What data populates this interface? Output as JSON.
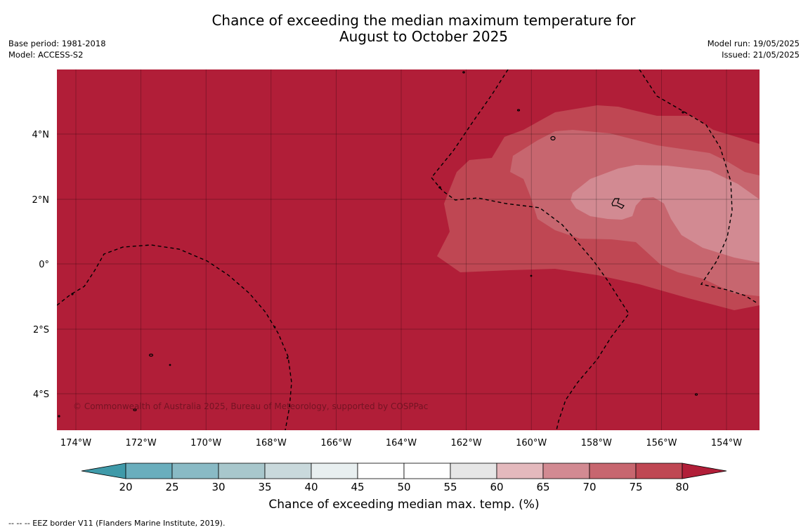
{
  "title_line1": "Chance of exceeding the median maximum temperature for",
  "title_line2": "August to October 2025",
  "base_period": "Base period: 1981-2018",
  "model": "Model: ACCESS-S2",
  "model_run": "Model run: 19/05/2025",
  "issued": "Issued: 21/05/2025",
  "copyright": "© Commonwealth of Australia 2025, Bureau of Meteorology, supported by COSPPac",
  "lon_labels": [
    "174°W",
    "172°W",
    "170°W",
    "168°W",
    "166°W",
    "164°W",
    "162°W",
    "160°W",
    "158°W",
    "156°W",
    "154°W"
  ],
  "lat_labels": [
    "4°N",
    "2°N",
    "0°",
    "2°S",
    "4°S"
  ],
  "colorbar": {
    "label": "Chance of exceeding median max. temp. (%)",
    "ticks": [
      "20",
      "25",
      "30",
      "35",
      "40",
      "45",
      "50",
      "55",
      "60",
      "65",
      "70",
      "75",
      "80"
    ],
    "colors": {
      "below_20": "#3f9aa9",
      "20_25": "#6aaebd",
      "25_30": "#89bac5",
      "30_35": "#a8c7cc",
      "35_40": "#c9d9dc",
      "40_45": "#e8eff0",
      "45_50": "#ffffff",
      "50_55": "#ffffff",
      "55_60": "#e6e6e6",
      "60_65": "#e4b9bd",
      "65_70": "#d28a92",
      "70_75": "#c7666f",
      "75_80": "#bf4753",
      "above_80": "#b11e38"
    }
  },
  "legend_footer": "--  --  -- EEZ border V11 (Flanders Marine Institute, 2019)."
}
